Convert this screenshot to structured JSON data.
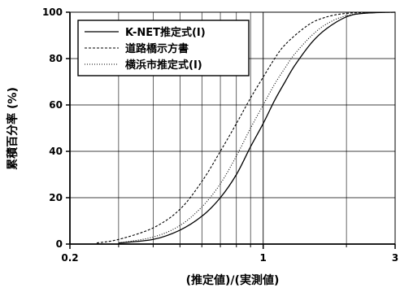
{
  "chart_data": {
    "type": "line",
    "title": "",
    "xlabel": "(推定値)/(実測値)",
    "ylabel": "累積百分率 (%)",
    "x_scale": "log",
    "xlim": [
      0.2,
      3
    ],
    "ylim": [
      0,
      100
    ],
    "x_tick_labels": [
      {
        "value": 0.2,
        "label": "0.2"
      },
      {
        "value": 1,
        "label": "1"
      },
      {
        "value": 3,
        "label": "3"
      }
    ],
    "y_ticks": [
      0,
      20,
      40,
      60,
      80,
      100
    ],
    "grid": true,
    "legend_position": "top-left",
    "series": [
      {
        "name": "K-NET推定式(I)",
        "style": "solid",
        "points": [
          [
            0.3,
            0.5
          ],
          [
            0.4,
            2
          ],
          [
            0.5,
            6
          ],
          [
            0.6,
            12
          ],
          [
            0.7,
            20
          ],
          [
            0.8,
            30
          ],
          [
            0.9,
            42
          ],
          [
            1.0,
            52
          ],
          [
            1.1,
            62
          ],
          [
            1.2,
            70
          ],
          [
            1.3,
            77
          ],
          [
            1.5,
            87
          ],
          [
            1.7,
            93
          ],
          [
            2.0,
            98
          ],
          [
            2.3,
            99.5
          ],
          [
            3.0,
            100
          ]
        ]
      },
      {
        "name": "道路橋示方書",
        "style": "dashed",
        "points": [
          [
            0.25,
            0.5
          ],
          [
            0.3,
            2
          ],
          [
            0.4,
            7
          ],
          [
            0.5,
            15
          ],
          [
            0.6,
            27
          ],
          [
            0.7,
            40
          ],
          [
            0.8,
            52
          ],
          [
            0.9,
            63
          ],
          [
            1.0,
            72
          ],
          [
            1.1,
            80
          ],
          [
            1.2,
            86
          ],
          [
            1.4,
            93
          ],
          [
            1.6,
            97
          ],
          [
            2.0,
            99.5
          ],
          [
            3.0,
            100
          ]
        ]
      },
      {
        "name": "横浜市推定式(I)",
        "style": "dotted",
        "points": [
          [
            0.3,
            0.5
          ],
          [
            0.4,
            3
          ],
          [
            0.5,
            8
          ],
          [
            0.6,
            16
          ],
          [
            0.7,
            26
          ],
          [
            0.8,
            38
          ],
          [
            0.9,
            50
          ],
          [
            1.0,
            60
          ],
          [
            1.1,
            69
          ],
          [
            1.2,
            76
          ],
          [
            1.3,
            82
          ],
          [
            1.5,
            90
          ],
          [
            1.7,
            95
          ],
          [
            2.0,
            98.5
          ],
          [
            2.5,
            99.8
          ],
          [
            3.0,
            100
          ]
        ]
      }
    ]
  }
}
